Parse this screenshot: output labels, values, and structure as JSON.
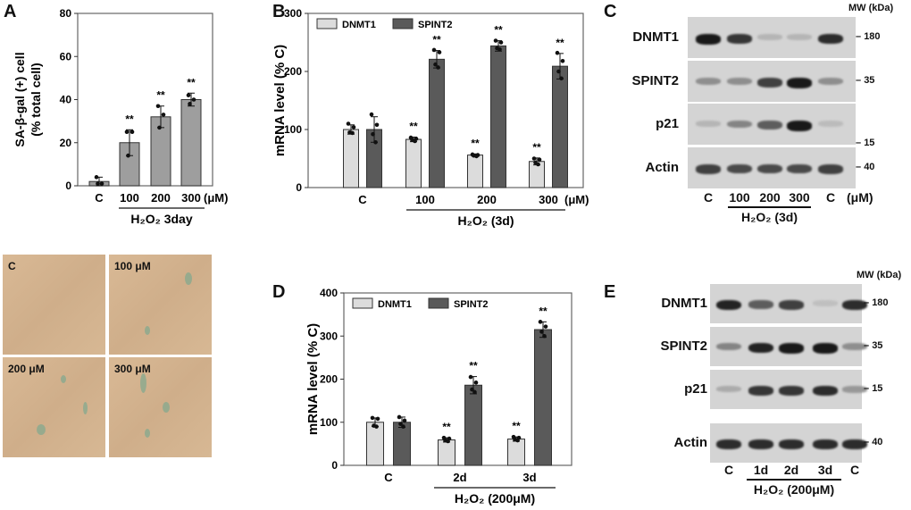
{
  "panels": {
    "a": "A",
    "b": "B",
    "c": "C",
    "d": "D",
    "e": "E"
  },
  "colors": {
    "bar_a": "#9e9e9e",
    "dnmt1": "#dcdcdc",
    "spint2": "#5a5a5a",
    "micro_bg": "#d4b590",
    "blot_bg": "#d4d4d4"
  },
  "chart_data": [
    {
      "id": "A",
      "type": "bar",
      "ylabel_line1": "SA-β-gal (+) cell",
      "ylabel_line2": "(% total cell)",
      "ylim": [
        0,
        80
      ],
      "yticks": [
        "0",
        "20",
        "40",
        "60",
        "80"
      ],
      "categories": [
        "C",
        "100",
        "200",
        "300"
      ],
      "unit": "(μM)",
      "group_label": "H₂O₂  3day",
      "series": [
        {
          "values": [
            2,
            20,
            32,
            40
          ],
          "sd": [
            2,
            6,
            5,
            3
          ],
          "points": [
            [
              4,
              1,
              1
            ],
            [
              25,
              25,
              14
            ],
            [
              37,
              33,
              27
            ],
            [
              42,
              40,
              38
            ]
          ],
          "sig": [
            "",
            "**",
            "**",
            "**"
          ]
        }
      ]
    },
    {
      "id": "B",
      "type": "bar",
      "ylabel": "mRNA level (% C)",
      "ylim": [
        0,
        300
      ],
      "yticks": [
        "0",
        "100",
        "200",
        "300"
      ],
      "categories": [
        "C",
        "100",
        "200",
        "300"
      ],
      "unit": "(μM)",
      "group_label": "H₂O₂  (3d)",
      "series": [
        {
          "name": "DNMT1",
          "values": [
            100,
            83,
            56,
            45
          ],
          "sd": [
            8,
            4,
            2,
            6
          ],
          "points": [
            [
              110,
              104,
              95,
              94
            ],
            [
              86,
              84,
              82,
              80
            ],
            [
              57,
              56,
              55,
              54
            ],
            [
              50,
              48,
              43,
              40
            ]
          ],
          "sig": [
            "",
            "**",
            "**",
            "**"
          ]
        },
        {
          "name": "SPINT2",
          "values": [
            100,
            221,
            244,
            209
          ],
          "sd": [
            22,
            15,
            9,
            22
          ],
          "points": [
            [
              126,
              108,
              92,
              78
            ],
            [
              237,
              233,
              212,
              207
            ],
            [
              253,
              250,
              240,
              238
            ],
            [
              232,
              218,
              200,
              188
            ]
          ],
          "sig": [
            "",
            "**",
            "**",
            "**"
          ]
        }
      ],
      "legend": "top-left"
    },
    {
      "id": "D",
      "type": "bar",
      "ylabel": "mRNA level (% C)",
      "ylim": [
        0,
        400
      ],
      "yticks": [
        "0",
        "100",
        "200",
        "300",
        "400"
      ],
      "categories": [
        "C",
        "2d",
        "3d"
      ],
      "group_label": "H₂O₂ (200μM)",
      "series": [
        {
          "name": "DNMT1",
          "values": [
            100,
            59,
            61
          ],
          "sd": [
            10,
            5,
            5
          ],
          "points": [
            [
              110,
              108,
              92,
              90
            ],
            [
              64,
              62,
              58,
              56
            ],
            [
              66,
              64,
              60,
              58
            ]
          ],
          "sig": [
            "",
            "**",
            "**"
          ]
        },
        {
          "name": "SPINT2",
          "values": [
            100,
            186,
            315
          ],
          "sd": [
            12,
            20,
            18
          ],
          "points": [
            [
              112,
              104,
              96,
              90
            ],
            [
              205,
              192,
              176,
              170
            ],
            [
              333,
              322,
              310,
              300
            ]
          ],
          "sig": [
            "",
            "**",
            "**"
          ]
        }
      ],
      "legend": "top-left"
    }
  ],
  "micrographs": [
    {
      "label": "C"
    },
    {
      "label": "100 μM"
    },
    {
      "label": "200 μM"
    },
    {
      "label": "300 μM"
    }
  ],
  "blot_c": {
    "mw_header": "MW (kDa)",
    "rows": [
      {
        "label": "DNMT1",
        "mw": "180",
        "bands": [
          0.95,
          0.8,
          0.15,
          0.15,
          0.85
        ]
      },
      {
        "label": "SPINT2",
        "mw": "35",
        "bands": [
          0.35,
          0.35,
          0.75,
          0.95,
          0.35
        ]
      },
      {
        "label": "p21",
        "mw": "15",
        "bands": [
          0.15,
          0.4,
          0.6,
          0.95,
          0.12
        ]
      },
      {
        "label": "Actin",
        "mw": "40",
        "bands": [
          0.75,
          0.7,
          0.7,
          0.7,
          0.75
        ]
      }
    ],
    "lanes": [
      "C",
      "100",
      "200",
      "300",
      "C"
    ],
    "unit": "(μM)",
    "group_label": "H₂O₂  (3d)"
  },
  "blot_e": {
    "mw_header": "MW (kDa)",
    "rows": [
      {
        "label": "DNMT1",
        "mw": "180",
        "bands": [
          0.9,
          0.6,
          0.75,
          0.1,
          0.85
        ]
      },
      {
        "label": "SPINT2",
        "mw": "35",
        "bands": [
          0.4,
          0.9,
          0.95,
          0.95,
          0.35
        ]
      },
      {
        "label": "p21",
        "mw": "15",
        "bands": [
          0.2,
          0.8,
          0.8,
          0.85,
          0.3
        ]
      },
      {
        "label": "Actin",
        "mw": "40",
        "bands": [
          0.85,
          0.85,
          0.85,
          0.85,
          0.85
        ]
      }
    ],
    "lanes": [
      "C",
      "1d",
      "2d",
      "3d",
      "C"
    ],
    "group_label": "H₂O₂ (200μM)"
  }
}
